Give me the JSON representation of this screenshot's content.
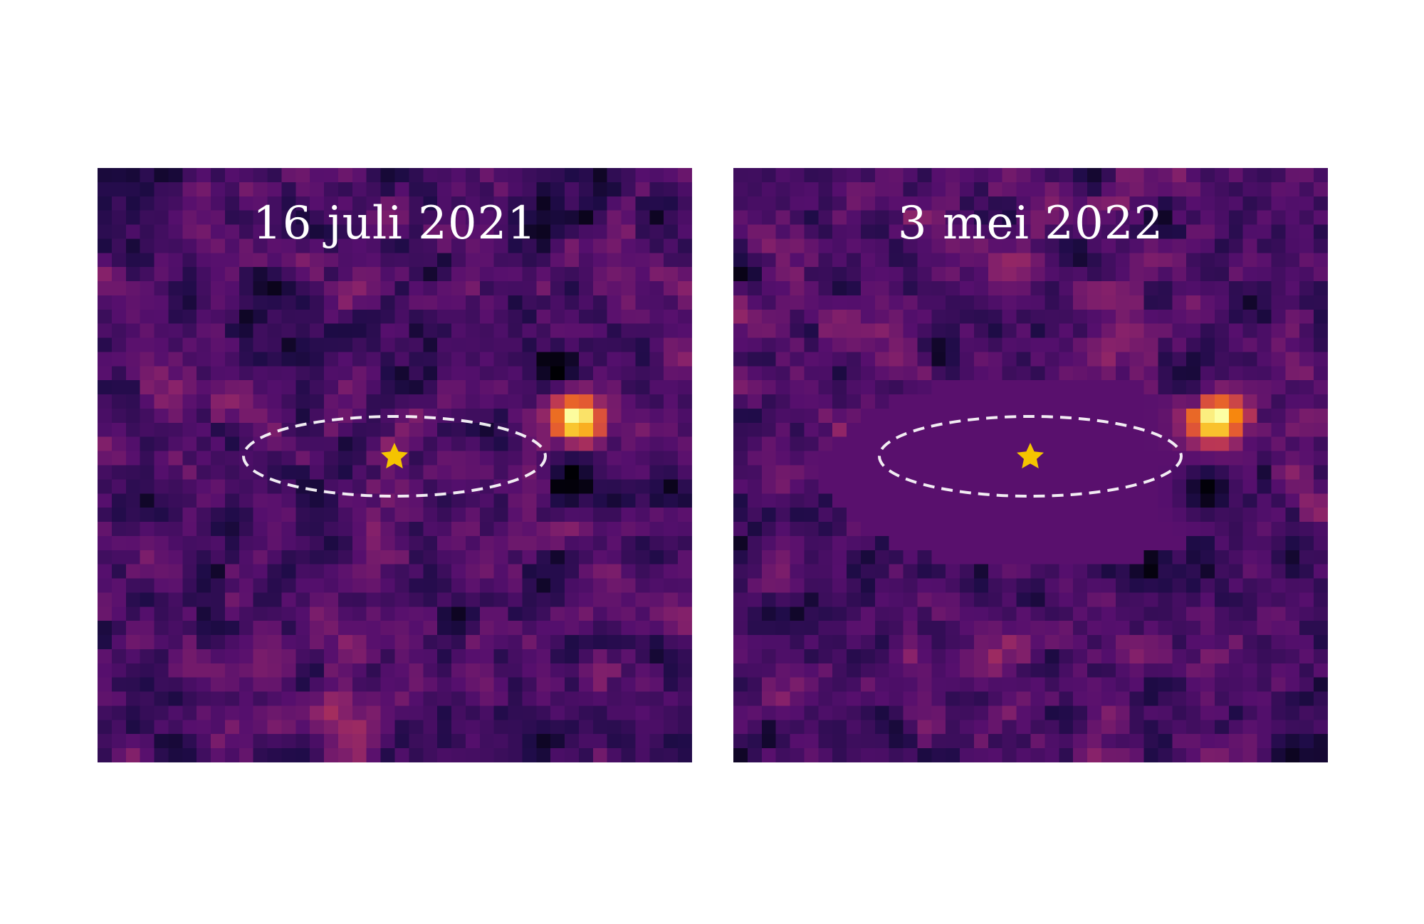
{
  "panels": [
    {
      "date_label": "16 juli 2021",
      "seed": 21,
      "planet_position": "right",
      "masked_center": false
    },
    {
      "date_label": "3 mei 2022",
      "seed": 77,
      "planet_position": "right",
      "masked_center": true
    }
  ],
  "colors": {
    "background": "#ffffff",
    "orbit_line": "#ffffff",
    "star_marker": "#f5c400",
    "label_text": "#ffffff"
  },
  "icons": {
    "star_marker": "star-icon",
    "orbit": "dashed-ellipse"
  }
}
